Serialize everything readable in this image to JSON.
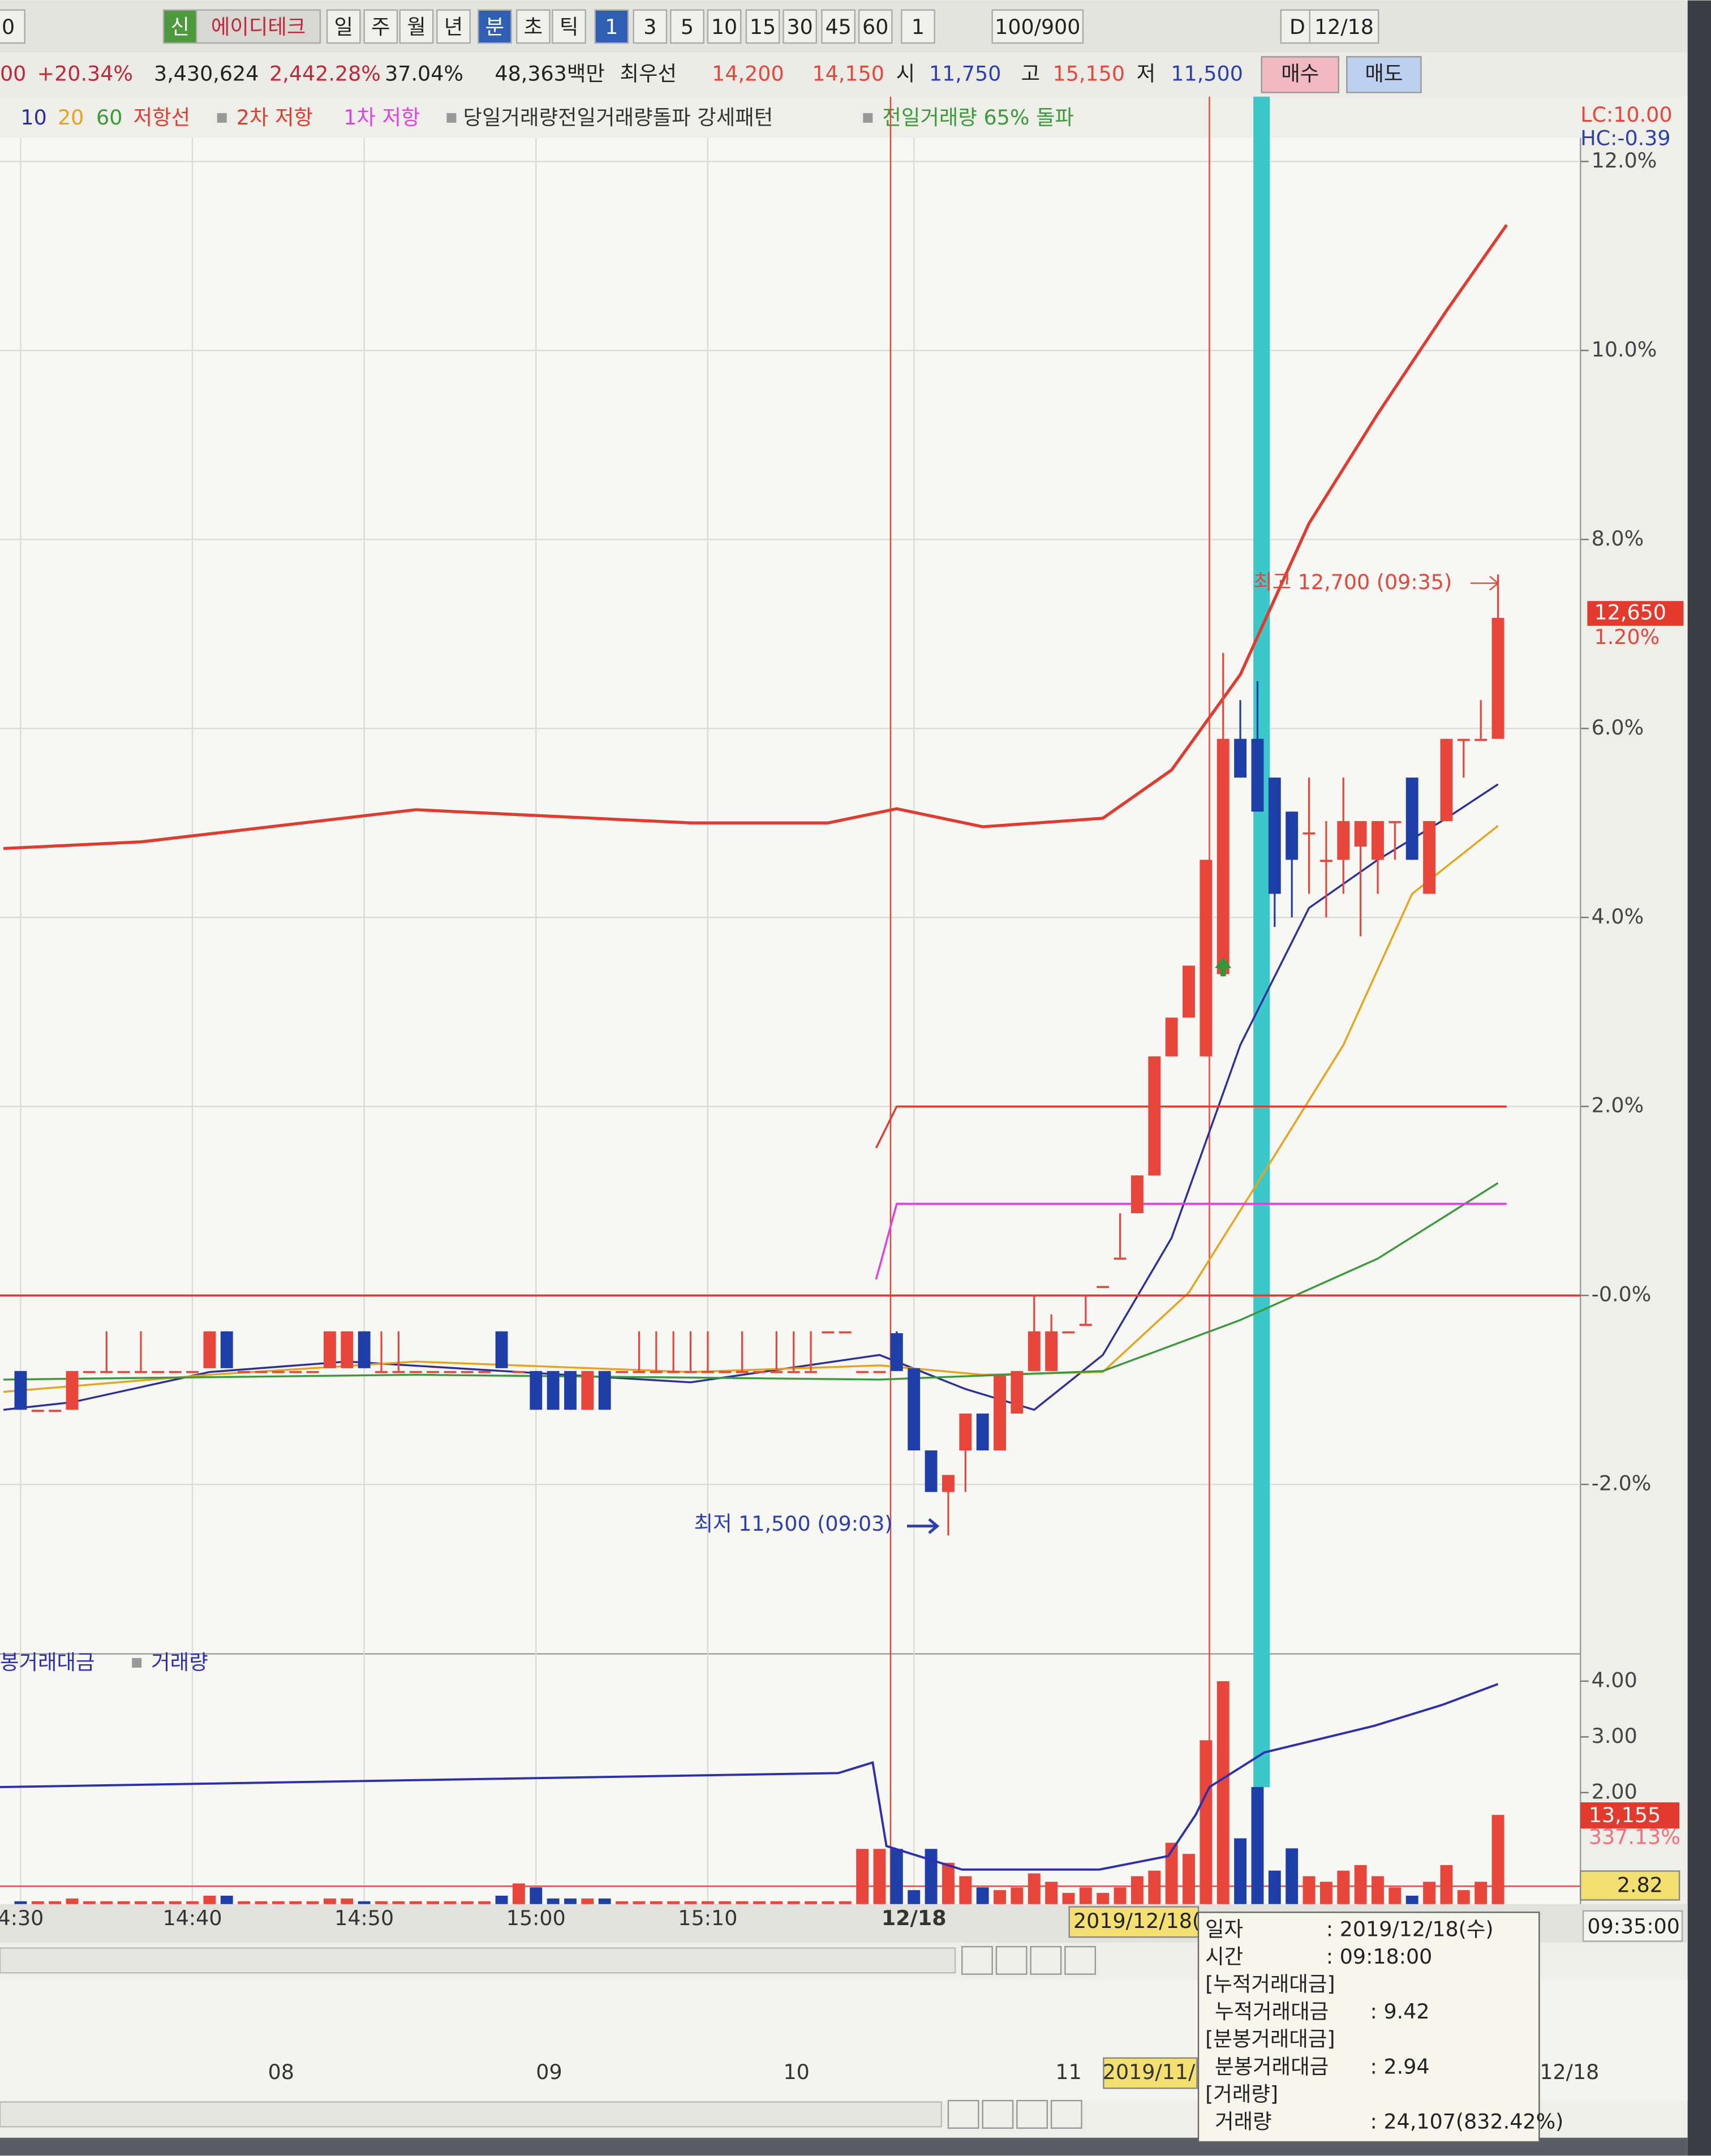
{
  "toolbar": {
    "items": [
      "0",
      "신",
      "에이디테크",
      "일",
      "주",
      "월",
      "년",
      "분",
      "초",
      "틱",
      "1",
      "3",
      "5",
      "10",
      "15",
      "30",
      "45",
      "60",
      "1",
      "100/900",
      "D",
      "12/18"
    ]
  },
  "quote": {
    "items": [
      "00",
      "+20.34%",
      "3,430,624",
      "2,442.28%",
      "37.04%",
      "48,363백만",
      "최우선",
      "14,200",
      "14,150",
      "시",
      "11,750",
      "고",
      "15,150",
      "저",
      "11,500"
    ],
    "buy": "매수",
    "sell": "매도"
  },
  "legend_extra": [
    "당일거래량전일거래량돌파 강세패턴",
    "전일거래량 65% 돌파"
  ],
  "chart_data": [
    {
      "type": "candlestick",
      "up_color": "#e8463a",
      "down_color": "#1f3fa8",
      "xlim": [
        -1.2,
        90.8
      ],
      "ylim": [
        -3.75,
        12.25
      ],
      "yticks": [
        {
          "value": 12,
          "label": "12.0%"
        },
        {
          "value": 10,
          "label": "10.0%"
        },
        {
          "value": 8,
          "label": "8.0%"
        },
        {
          "value": 6,
          "label": "6.0%"
        },
        {
          "value": 4,
          "label": "4.0%"
        },
        {
          "value": 2,
          "label": "2.0%"
        },
        {
          "value": 0,
          "label": "-0.0%"
        },
        {
          "value": -2,
          "label": "-2.0%"
        }
      ],
      "grid": true,
      "categories": [
        "4:30",
        null,
        null,
        null,
        null,
        null,
        null,
        null,
        null,
        null,
        "14:40",
        null,
        null,
        null,
        null,
        null,
        null,
        null,
        null,
        null,
        "14:50",
        null,
        null,
        null,
        null,
        null,
        null,
        null,
        null,
        null,
        "15:00",
        null,
        null,
        null,
        null,
        null,
        null,
        null,
        null,
        null,
        "15:10",
        null,
        null,
        null,
        null,
        null,
        null,
        null,
        null,
        null,
        null,
        null,
        "12/18",
        null,
        null,
        null,
        null,
        null,
        null,
        null,
        null,
        null,
        null,
        null,
        null,
        null,
        null,
        null,
        null,
        null,
        null,
        null,
        null,
        null,
        null,
        null,
        null,
        null,
        null,
        null,
        null,
        null,
        null,
        null,
        null,
        null,
        null
      ],
      "open": [
        -0.8,
        -1.21,
        -1.21,
        -1.21,
        -0.8,
        -0.8,
        -0.8,
        -0.8,
        -0.8,
        -0.8,
        -0.8,
        -0.77,
        -0.38,
        -0.8,
        -0.8,
        -0.8,
        -0.8,
        -0.8,
        -0.77,
        -0.77,
        -0.38,
        -0.8,
        -0.8,
        -0.8,
        -0.8,
        -0.8,
        -0.8,
        -0.8,
        -0.38,
        -0.8,
        -0.8,
        -0.8,
        -0.8,
        -1.21,
        -0.8,
        -0.8,
        -0.8,
        -0.8,
        -0.8,
        -0.8,
        -0.8,
        -0.8,
        -0.8,
        -0.8,
        -0.8,
        -0.8,
        -0.8,
        -0.38,
        -0.38,
        -0.8,
        -0.8,
        -0.4,
        -0.77,
        -1.64,
        -2.08,
        -1.64,
        -1.25,
        -1.64,
        -1.25,
        -0.8,
        -0.8,
        -0.38,
        -0.3,
        0.1,
        0.4,
        0.87,
        1.27,
        2.53,
        2.94,
        2.53,
        3.4,
        5.89,
        5.89,
        5.48,
        5.12,
        4.9,
        4.61,
        4.61,
        4.75,
        4.61,
        5.02,
        5.48,
        4.25,
        5.02,
        5.89,
        5.89,
        5.89
      ],
      "high": [
        -0.8,
        -1.21,
        -1.21,
        -0.8,
        -0.8,
        -0.38,
        -0.8,
        -0.38,
        -0.8,
        -0.8,
        -0.8,
        -0.38,
        -0.38,
        -0.8,
        -0.8,
        -0.8,
        -0.8,
        -0.8,
        -0.38,
        -0.38,
        -0.38,
        -0.38,
        -0.38,
        -0.8,
        -0.8,
        -0.8,
        -0.8,
        -0.8,
        -0.38,
        -0.8,
        -0.8,
        -0.8,
        -0.8,
        -0.8,
        -0.8,
        -0.8,
        -0.38,
        -0.38,
        -0.38,
        -0.38,
        -0.38,
        -0.8,
        -0.38,
        -0.8,
        -0.38,
        -0.38,
        -0.38,
        -0.38,
        -0.38,
        -0.8,
        -0.8,
        -0.38,
        -0.77,
        -1.64,
        -1.9,
        -1.25,
        -1.25,
        -0.85,
        -0.8,
        0,
        -0.2,
        -0.38,
        0,
        0.1,
        0.87,
        1.27,
        2.53,
        2.94,
        3.49,
        4.61,
        6.8,
        6.3,
        6.5,
        5.48,
        5.12,
        5.48,
        5.02,
        5.48,
        5.02,
        5.02,
        5.02,
        5.48,
        5.02,
        5.89,
        5.89,
        6.3,
        7.63
      ],
      "low": [
        -1.21,
        -1.21,
        -1.21,
        -1.21,
        -0.8,
        -0.8,
        -0.8,
        -0.8,
        -0.8,
        -0.8,
        -0.8,
        -0.77,
        -0.77,
        -0.8,
        -0.8,
        -0.8,
        -0.8,
        -0.8,
        -0.77,
        -0.77,
        -0.77,
        -0.8,
        -0.8,
        -0.8,
        -0.8,
        -0.8,
        -0.8,
        -0.8,
        -0.77,
        -0.8,
        -1.21,
        -1.21,
        -1.21,
        -1.21,
        -1.21,
        -0.8,
        -0.8,
        -0.8,
        -0.8,
        -0.8,
        -0.8,
        -0.8,
        -0.8,
        -0.8,
        -0.8,
        -0.8,
        -0.8,
        -0.38,
        -0.38,
        -0.8,
        -0.8,
        -0.8,
        -1.64,
        -2.08,
        -2.54,
        -2.08,
        -1.64,
        -1.64,
        -1.25,
        -0.8,
        -0.8,
        -0.38,
        -0.3,
        0.1,
        0.4,
        0.87,
        1.27,
        2.53,
        2.94,
        2.53,
        3.4,
        5.48,
        5.12,
        3.9,
        4.0,
        4.25,
        4.0,
        4.25,
        3.8,
        4.25,
        4.61,
        4.61,
        4.25,
        5.02,
        5.48,
        5.89,
        5.89
      ],
      "close": [
        -1.21,
        -1.21,
        -1.21,
        -0.8,
        -0.8,
        -0.8,
        -0.8,
        -0.8,
        -0.8,
        -0.8,
        -0.8,
        -0.38,
        -0.77,
        -0.8,
        -0.8,
        -0.8,
        -0.8,
        -0.8,
        -0.38,
        -0.38,
        -0.77,
        -0.8,
        -0.8,
        -0.8,
        -0.8,
        -0.8,
        -0.8,
        -0.8,
        -0.77,
        -0.8,
        -1.21,
        -1.21,
        -1.21,
        -0.8,
        -1.21,
        -0.8,
        -0.8,
        -0.8,
        -0.8,
        -0.8,
        -0.8,
        -0.8,
        -0.8,
        -0.8,
        -0.8,
        -0.8,
        -0.8,
        -0.38,
        -0.38,
        -0.8,
        -0.8,
        -0.8,
        -1.64,
        -2.08,
        -1.9,
        -1.25,
        -1.64,
        -0.85,
        -0.8,
        -0.38,
        -0.38,
        -0.38,
        -0.3,
        0.1,
        0.4,
        1.27,
        2.53,
        2.94,
        3.49,
        4.61,
        5.89,
        5.48,
        5.12,
        4.25,
        4.61,
        4.9,
        4.61,
        5.02,
        5.02,
        5.02,
        5.02,
        4.61,
        5.02,
        5.89,
        5.89,
        5.89,
        7.17
      ],
      "series": [
        {
          "color": "#e23b2e",
          "x": [
            -1,
            7,
            23,
            39,
            47,
            51,
            56,
            63,
            67,
            71,
            75,
            79,
            83,
            86.5
          ],
          "values": [
            4.73,
            4.8,
            5.14,
            5.0,
            5.0,
            5.15,
            4.96,
            5.05,
            5.56,
            6.57,
            8.17,
            9.33,
            10.42,
            11.33
          ]
        },
        {
          "name": "10",
          "color": "#2b2f9e",
          "x": [
            -1,
            3,
            11,
            19,
            29,
            39,
            50,
            55,
            59,
            63,
            67,
            71,
            75,
            79,
            83,
            86
          ],
          "values": [
            -1.21,
            -1.13,
            -0.81,
            -0.7,
            -0.81,
            -0.92,
            -0.63,
            -0.99,
            -1.21,
            -0.63,
            0.61,
            2.65,
            4.1,
            4.61,
            5.05,
            5.41
          ]
        },
        {
          "name": "20",
          "color": "#e8a317",
          "x": [
            -1,
            11,
            23,
            39,
            50,
            56,
            63,
            68,
            72,
            77,
            81,
            86
          ],
          "values": [
            -1.02,
            -0.84,
            -0.7,
            -0.81,
            -0.74,
            -0.84,
            -0.81,
            0.03,
            1.19,
            2.65,
            4.25,
            4.97
          ]
        },
        {
          "name": "60",
          "color": "#3a9a3a",
          "x": [
            -1,
            23,
            50,
            63,
            71,
            79,
            86
          ],
          "values": [
            -0.89,
            -0.84,
            -0.89,
            -0.8,
            -0.26,
            0.39,
            1.19
          ]
        },
        {
          "name": "저항선",
          "color": "#e23b2e",
          "x": [
            -1.2,
            90.8
          ],
          "values": [
            0,
            0
          ]
        },
        {
          "name": "2차 저항",
          "color": "#e23b2e",
          "x": [
            49.8,
            51,
            86.5
          ],
          "values": [
            1.56,
            2.0,
            2.0
          ]
        },
        {
          "name": "1차 저항",
          "color": "#e040e0",
          "x": [
            49.8,
            51,
            86.5
          ],
          "values": [
            0.17,
            0.97,
            0.97
          ]
        }
      ]
    },
    {
      "type": "bar",
      "xlim": [
        -1.2,
        90.8
      ],
      "ylim": [
        0,
        4.44
      ],
      "yticks": [
        {
          "value": 4,
          "label": "4.00"
        },
        {
          "value": 3,
          "label": "3.00"
        },
        {
          "value": 2,
          "label": "2.00"
        }
      ],
      "series": [
        {
          "name": "거래량",
          "values": [
            0.05,
            0.05,
            0.05,
            0.1,
            0.05,
            0.05,
            0.05,
            0.05,
            0.05,
            0.05,
            0.05,
            0.15,
            0.15,
            0.05,
            0.05,
            0.05,
            0.05,
            0.05,
            0.1,
            0.1,
            0.05,
            0.05,
            0.05,
            0.05,
            0.05,
            0.05,
            0.05,
            0.05,
            0.15,
            0.37,
            0.3,
            0.1,
            0.1,
            0.1,
            0.1,
            0.05,
            0.05,
            0.05,
            0.05,
            0.05,
            0.05,
            0.05,
            0.05,
            0.05,
            0.05,
            0.05,
            0.05,
            0.05,
            0.05,
            0.99,
            0.99,
            0.99,
            0.25,
            0.99,
            0.74,
            0.5,
            0.3,
            0.25,
            0.3,
            0.55,
            0.4,
            0.2,
            0.3,
            0.2,
            0.3,
            0.5,
            0.6,
            1.1,
            0.9,
            2.94,
            4.0,
            1.18,
            2.1,
            0.6,
            1.0,
            0.5,
            0.4,
            0.6,
            0.7,
            0.5,
            0.3,
            0.15,
            0.4,
            0.7,
            0.25,
            0.4,
            1.6
          ]
        },
        {
          "name": "봉거래대금",
          "type": "line",
          "color": "#2b2fb0",
          "x": [
            -1.2,
            47.6,
            49.6,
            50.4,
            54.8,
            62.8,
            66.8,
            68.4,
            69.2,
            72.4,
            78.8,
            82.8,
            86
          ],
          "values": [
            2.1,
            2.35,
            2.54,
            1.04,
            0.62,
            0.62,
            0.86,
            1.6,
            2.1,
            2.72,
            3.2,
            3.58,
            3.95
          ]
        }
      ]
    }
  ],
  "right_labels": {
    "lc": "LC:10.00",
    "hc": "HC:-0.39",
    "price": "12,650",
    "price_pct": "1.20%",
    "vol": "13,155",
    "vol_pct": "337.13%",
    "vol_cur": "2.82"
  },
  "annotations": {
    "high": "최고 12,700 (09:35)",
    "low": "최저 11,500 (09:03)"
  },
  "cursor": {
    "date_box": "2019/12/18(",
    "time": "09:35:00"
  },
  "tooltip": {
    "rows": [
      [
        "일자",
        ": 2019/12/18(수)"
      ],
      [
        "시간",
        ": 09:18:00"
      ],
      [
        "[누적거래대금]"
      ],
      [
        "누적거래대금",
        ": 9.42"
      ],
      [
        "[분봉거래대금]"
      ],
      [
        "분봉거래대금",
        ": 2.94"
      ],
      [
        "[거래량]"
      ],
      [
        "거래량",
        ": 24,107(832.42%)"
      ]
    ]
  },
  "mini": {
    "labels": [
      "08",
      "09",
      "10",
      "11",
      "2019/11/",
      "12/18"
    ]
  }
}
